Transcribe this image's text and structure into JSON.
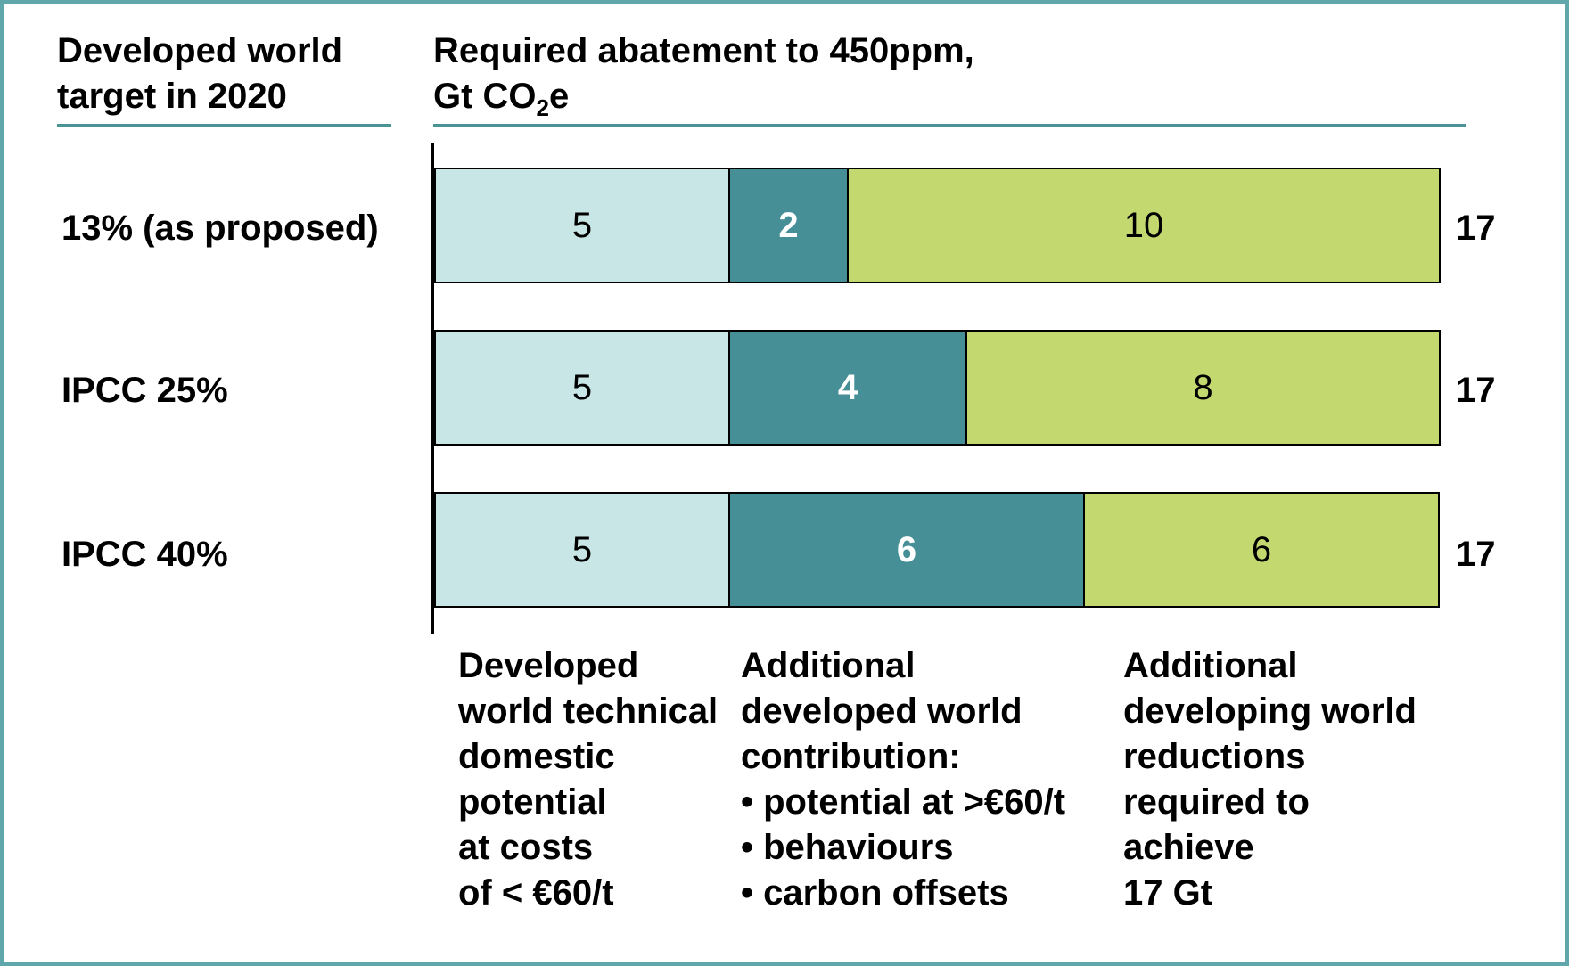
{
  "header": {
    "left_lines": [
      "Developed world",
      "target in 2020"
    ],
    "right_line1": "Required abatement to 450ppm,",
    "right_line2_pre": "Gt CO",
    "right_line2_sub": "2",
    "right_line2_post": "e"
  },
  "colors": {
    "frame": "#5fa7aa",
    "rule": "#4a9498",
    "technical": "#c8e6e6",
    "additional_developed": "#468f96",
    "developing": "#c3d86f"
  },
  "chart_data": {
    "type": "bar",
    "orientation": "horizontal",
    "stacked": true,
    "title": "Required abatement to 450ppm, Gt CO2e",
    "categories": [
      "13% (as proposed)",
      "IPCC 25%",
      "IPCC 40%"
    ],
    "series": [
      {
        "name": "Developed world technical domestic potential at costs of < €60/t",
        "values": [
          5,
          5,
          5
        ],
        "color": "#c8e6e6",
        "label_color": "#000000",
        "label_bold": false
      },
      {
        "name": "Additional developed world contribution",
        "values": [
          2,
          4,
          6
        ],
        "color": "#468f96",
        "label_color": "#ffffff",
        "label_bold": true
      },
      {
        "name": "Additional developing world reductions required to achieve 17 Gt",
        "values": [
          10,
          8,
          6
        ],
        "color": "#c3d86f",
        "label_color": "#000000",
        "label_bold": false
      }
    ],
    "totals": [
      17,
      17,
      17
    ],
    "xlim": [
      0,
      17
    ],
    "grid": false
  },
  "segment_labels": [
    [
      "5",
      "2",
      "10"
    ],
    [
      "5",
      "4",
      "8"
    ],
    [
      "5",
      "6",
      "6"
    ]
  ],
  "total_labels": [
    "17",
    "17",
    "17"
  ],
  "category_labels": [
    [
      "Developed",
      "world technical",
      "domestic",
      "potential",
      "at costs",
      "of < €60/t"
    ],
    [
      "Additional",
      "developed world",
      "contribution:",
      "• potential at >€60/t",
      "• behaviours",
      "• carbon offsets"
    ],
    [
      "Additional",
      "developing world",
      "reductions",
      "required to",
      "achieve",
      "17 Gt"
    ]
  ]
}
